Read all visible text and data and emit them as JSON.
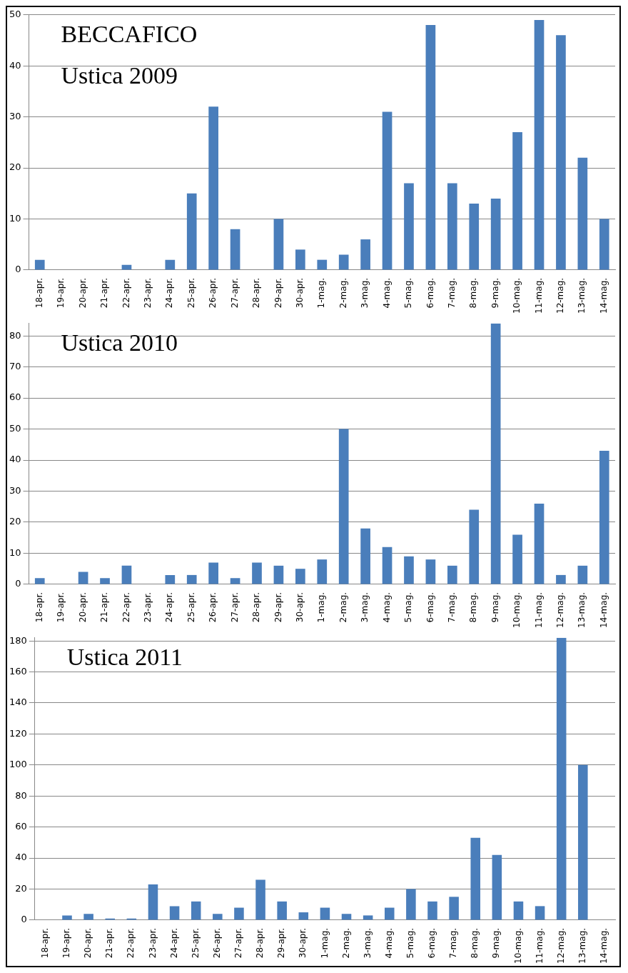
{
  "chart_data": [
    {
      "type": "bar",
      "annotations": [
        "BECCAFICO",
        "Ustica 2009"
      ],
      "categories": [
        "18-apr.",
        "19-apr.",
        "20-apr.",
        "21-apr.",
        "22-apr.",
        "23-apr.",
        "24-apr.",
        "25-apr.",
        "26-apr.",
        "27-apr.",
        "28-apr.",
        "29-apr.",
        "30-apr.",
        "1-mag.",
        "2-mag.",
        "3-mag.",
        "4-mag.",
        "5-mag.",
        "6-mag.",
        "7-mag.",
        "8-mag.",
        "9-mag.",
        "10-mag.",
        "11-mag.",
        "12-mag.",
        "13-mag.",
        "14-mag."
      ],
      "values": [
        2,
        0,
        0,
        0,
        1,
        0,
        2,
        15,
        32,
        8,
        0,
        10,
        4,
        2,
        3,
        6,
        31,
        17,
        48,
        17,
        13,
        14,
        27,
        49,
        46,
        22,
        10
      ],
      "color": "#4a7ebb",
      "ylim": [
        0,
        50
      ],
      "yticks": [
        0,
        10,
        20,
        30,
        40,
        50
      ],
      "grid": "y",
      "legend": false
    },
    {
      "type": "bar",
      "annotations": [
        "Ustica 2010"
      ],
      "categories": [
        "18-apr.",
        "19-apr.",
        "20-apr.",
        "21-apr.",
        "22-apr.",
        "23-apr.",
        "24-apr.",
        "25-apr.",
        "26-apr.",
        "27-apr.",
        "28-apr.",
        "29-apr.",
        "30-apr.",
        "1-mag.",
        "2-mag.",
        "3-mag.",
        "4-mag.",
        "5-mag.",
        "6-mag.",
        "7-mag.",
        "8-mag.",
        "9-mag.",
        "10-mag.",
        "11-mag.",
        "12-mag.",
        "13-mag.",
        "14-mag."
      ],
      "values": [
        2,
        0,
        4,
        2,
        6,
        0,
        3,
        3,
        7,
        2,
        7,
        6,
        5,
        8,
        50,
        18,
        12,
        9,
        8,
        6,
        24,
        84,
        16,
        26,
        3,
        6,
        43
      ],
      "color": "#4a7ebb",
      "ylim": [
        0,
        84
      ],
      "yticks": [
        0,
        10,
        20,
        30,
        40,
        50,
        60,
        70,
        80
      ],
      "grid": "y",
      "legend": false
    },
    {
      "type": "bar",
      "annotations": [
        "Ustica 2011"
      ],
      "categories": [
        "18-apr.",
        "19-apr.",
        "20-apr.",
        "21-apr.",
        "22-apr.",
        "23-apr.",
        "24-apr.",
        "25-apr.",
        "26-apr.",
        "27-apr.",
        "28-apr.",
        "29-apr.",
        "30-apr.",
        "1-mag.",
        "2-mag.",
        "3-mag.",
        "4-mag.",
        "5-mag.",
        "6-mag.",
        "7-mag.",
        "8-mag.",
        "9-mag.",
        "10-mag.",
        "11-mag.",
        "12-mag.",
        "13-mag.",
        "14-mag."
      ],
      "values": [
        0,
        3,
        4,
        1,
        1,
        23,
        9,
        12,
        4,
        8,
        26,
        12,
        5,
        8,
        4,
        3,
        8,
        20,
        12,
        15,
        53,
        42,
        12,
        9,
        182,
        100,
        0
      ],
      "color": "#4a7ebb",
      "ylim": [
        0,
        182
      ],
      "yticks": [
        0,
        20,
        40,
        60,
        80,
        100,
        120,
        140,
        160,
        180
      ],
      "grid": "y",
      "legend": false
    }
  ]
}
